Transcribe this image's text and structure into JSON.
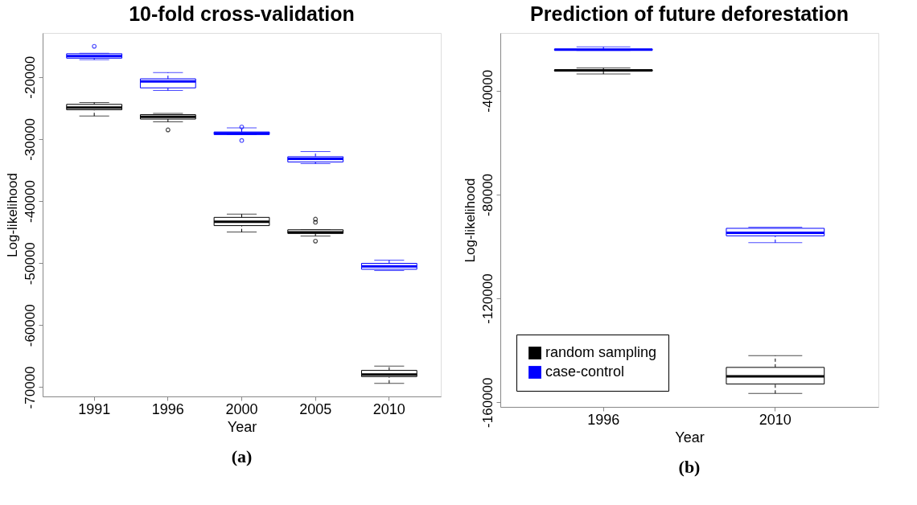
{
  "chart_data": [
    {
      "type": "box",
      "title": "10-fold cross-validation",
      "xlabel": "Year",
      "ylabel": "Log-likelihood",
      "categories": [
        "1991",
        "1996",
        "2000",
        "2005",
        "2010"
      ],
      "ylim": [
        -71500,
        -12900
      ],
      "yticks": [
        -20000,
        -30000,
        -40000,
        -50000,
        -60000,
        -70000
      ],
      "annotations": [
        "(a)"
      ],
      "series": [
        {
          "color": "#000000",
          "boxes": [
            {
              "low": -26280,
              "q1": -25280,
              "median": -24910,
              "q3": -24410,
              "high": -24120
            },
            {
              "low": -27240,
              "q1": -26780,
              "median": -26410,
              "q3": -26070,
              "high": -25870,
              "outliers": [
                -28530
              ]
            },
            {
              "low": -45000,
              "q1": -43960,
              "median": -43340,
              "q3": -42630,
              "high": -42090
            },
            {
              "low": -45630,
              "q1": -45210,
              "median": -45050,
              "q3": -44630,
              "high": -44630,
              "outliers": [
                -42920,
                -43420,
                -46460
              ]
            },
            {
              "low": -69380,
              "q1": -68300,
              "median": -67960,
              "q3": -67300,
              "high": -66590
            }
          ]
        },
        {
          "color": "#0000ff",
          "boxes": [
            {
              "low": -17210,
              "q1": -16960,
              "median": -16630,
              "q3": -16250,
              "high": -16170,
              "outliers": [
                -15050
              ]
            },
            {
              "low": -22160,
              "q1": -21750,
              "median": -20710,
              "q3": -20290,
              "high": -19290
            },
            {
              "low": -29300,
              "q1": -29280,
              "median": -29070,
              "q3": -28860,
              "high": -28200,
              "outliers": [
                -28050,
                -30230
              ]
            },
            {
              "low": -33980,
              "q1": -33690,
              "median": -33190,
              "q3": -32850,
              "high": -32020
            },
            {
              "low": -51200,
              "q1": -51000,
              "median": -50540,
              "q3": -50040,
              "high": -49540
            }
          ]
        }
      ]
    },
    {
      "type": "box",
      "title": "Prediction of future deforestation",
      "xlabel": "Year",
      "ylabel": "Log-likelihood",
      "categories": [
        "1996",
        "2010"
      ],
      "ylim": [
        -161800,
        -17770
      ],
      "yticks": [
        -40000,
        -80000,
        -120000,
        -160000
      ],
      "legend": "bottom left",
      "annotations": [
        "(b)"
      ],
      "series": [
        {
          "name": "random sampling",
          "color": "#000000",
          "boxes": [
            {
              "low": -33590,
              "q1": -32410,
              "median": -32200,
              "q3": -31980,
              "high": -31230
            },
            {
              "low": -156630,
              "q1": -152990,
              "median": -150000,
              "q3": -146580,
              "high": -142090
            }
          ]
        },
        {
          "name": "case-control",
          "color": "#0000ff",
          "boxes": [
            {
              "low": -24500,
              "q1": -24400,
              "median": -24200,
              "q3": -24000,
              "high": -23110
            },
            {
              "low": -98570,
              "q1": -95900,
              "median": -94730,
              "q3": -93020,
              "high": -92590
            }
          ]
        }
      ]
    }
  ]
}
